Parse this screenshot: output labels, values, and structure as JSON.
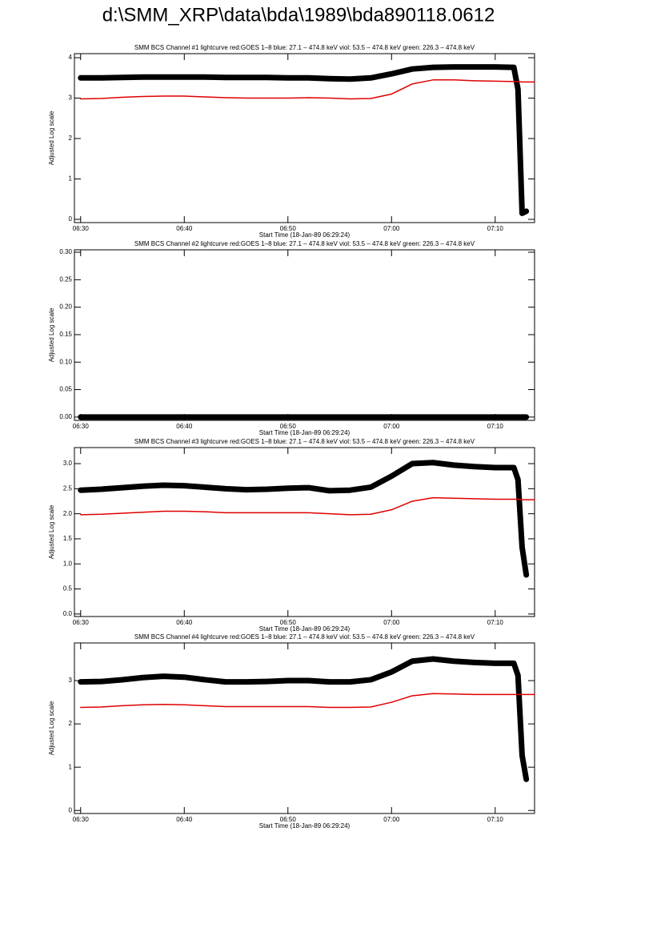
{
  "title": "d:\\SMM_XRP\\data\\bda\\1989\\bda890118.0612",
  "chart_data": [
    {
      "type": "line",
      "title": "SMM BCS Channel #1 lightcurve  red:GOES 1–8  blue: 27.1 – 474.8 keV  viol: 53.5 – 474.8 keV  green: 226.3 – 474.8 keV",
      "xlabel": "Start Time (18-Jan-89 06:29:24)",
      "ylabel": "Adjusted Log scale",
      "x": [
        390,
        392,
        394,
        396,
        398,
        400,
        402,
        404,
        406,
        408,
        410,
        412,
        414,
        416,
        418,
        420,
        422,
        424,
        426,
        428,
        430,
        431.8,
        432.2,
        432.6,
        433,
        433.8
      ],
      "xlim": [
        389.4,
        433.8
      ],
      "xticks": [
        {
          "value": 390,
          "label": "06:30"
        },
        {
          "value": 400,
          "label": "06:40"
        },
        {
          "value": 410,
          "label": "06:50"
        },
        {
          "value": 420,
          "label": "07:00"
        },
        {
          "value": 430,
          "label": "07:10"
        }
      ],
      "ylim": [
        -0.08,
        4.1
      ],
      "yticks": [
        0,
        1,
        2,
        3,
        4
      ],
      "series": [
        {
          "color": "#000000",
          "values": [
            3.5,
            3.5,
            3.51,
            3.52,
            3.52,
            3.52,
            3.52,
            3.51,
            3.51,
            3.51,
            3.5,
            3.5,
            3.48,
            3.47,
            3.5,
            3.6,
            3.72,
            3.76,
            3.77,
            3.77,
            3.77,
            3.76,
            3.22,
            0.15,
            0.2,
            null
          ]
        },
        {
          "color": "#e00000",
          "values": [
            2.98,
            2.99,
            3.02,
            3.04,
            3.05,
            3.05,
            3.03,
            3.01,
            3.0,
            3.0,
            3.0,
            3.01,
            3.0,
            2.98,
            2.99,
            3.1,
            3.35,
            3.45,
            3.45,
            3.43,
            3.42,
            3.41,
            3.41,
            3.4,
            3.4,
            3.4
          ]
        }
      ]
    },
    {
      "type": "line",
      "title": "SMM BCS Channel #2 lightcurve  red:GOES 1–8  blue: 27.1 – 474.8 keV  viol: 53.5 – 474.8 keV  green: 226.3 – 474.8 keV",
      "xlabel": "Start Time (18-Jan-89 06:29:24)",
      "ylabel": "Adjusted Log scale",
      "x": [
        390,
        392,
        394,
        396,
        398,
        400,
        402,
        404,
        406,
        408,
        410,
        412,
        414,
        416,
        418,
        420,
        422,
        424,
        426,
        428,
        430,
        431.8,
        432.2,
        432.6,
        433,
        433.8
      ],
      "xlim": [
        389.4,
        433.8
      ],
      "xticks": [
        {
          "value": 390,
          "label": "06:30"
        },
        {
          "value": 400,
          "label": "06:40"
        },
        {
          "value": 410,
          "label": "06:50"
        },
        {
          "value": 420,
          "label": "07:00"
        },
        {
          "value": 430,
          "label": "07:10"
        }
      ],
      "ylim": [
        -0.006,
        0.3044
      ],
      "yticks": [
        {
          "value": 0,
          "label": "0.00"
        },
        {
          "value": 0.05,
          "label": "0.05"
        },
        {
          "value": 0.1,
          "label": "0.10"
        },
        {
          "value": 0.15,
          "label": "0.15"
        },
        {
          "value": 0.2,
          "label": "0.20"
        },
        {
          "value": 0.25,
          "label": "0.25"
        },
        {
          "value": 0.3,
          "label": "0.30"
        }
      ],
      "series": [
        {
          "color": "#000000",
          "values": [
            0,
            0,
            0,
            0,
            0,
            0,
            0,
            0,
            0,
            0,
            0,
            0,
            0,
            0,
            0,
            0,
            0,
            0,
            0,
            0,
            0,
            0,
            0,
            0,
            0,
            null
          ]
        }
      ]
    },
    {
      "type": "line",
      "title": "SMM BCS Channel #3 lightcurve  red:GOES 1–8  blue: 27.1 – 474.8 keV  viol: 53.5 – 474.8 keV  green: 226.3 – 474.8 keV",
      "xlabel": "Start Time (18-Jan-89 06:29:24)",
      "ylabel": "Adjusted Log scale",
      "x": [
        390,
        392,
        394,
        396,
        398,
        400,
        402,
        404,
        406,
        408,
        410,
        412,
        414,
        416,
        418,
        420,
        422,
        424,
        426,
        428,
        430,
        431.8,
        432.2,
        432.6,
        433,
        433.8
      ],
      "xlim": [
        389.4,
        433.8
      ],
      "xticks": [
        {
          "value": 390,
          "label": "06:30"
        },
        {
          "value": 400,
          "label": "06:40"
        },
        {
          "value": 410,
          "label": "06:50"
        },
        {
          "value": 420,
          "label": "07:00"
        },
        {
          "value": 430,
          "label": "07:10"
        }
      ],
      "ylim": [
        -0.05,
        3.32
      ],
      "yticks": [
        {
          "value": 0,
          "label": "0.0"
        },
        0.5,
        {
          "value": 1,
          "label": "1.0"
        },
        1.5,
        {
          "value": 2,
          "label": "2.0"
        },
        2.5,
        {
          "value": 3,
          "label": "3.0"
        }
      ],
      "series": [
        {
          "color": "#000000",
          "values": [
            2.47,
            2.49,
            2.52,
            2.55,
            2.57,
            2.56,
            2.53,
            2.5,
            2.48,
            2.49,
            2.51,
            2.52,
            2.46,
            2.47,
            2.53,
            2.75,
            3.0,
            3.02,
            2.97,
            2.94,
            2.92,
            2.92,
            2.68,
            1.33,
            0.78,
            null
          ]
        },
        {
          "color": "#e00000",
          "values": [
            1.98,
            1.99,
            2.01,
            2.03,
            2.05,
            2.05,
            2.04,
            2.02,
            2.02,
            2.02,
            2.02,
            2.02,
            2.0,
            1.98,
            1.99,
            2.08,
            2.25,
            2.32,
            2.31,
            2.3,
            2.29,
            2.29,
            2.29,
            2.28,
            2.28,
            2.28
          ]
        }
      ]
    },
    {
      "type": "line",
      "title": "SMM BCS Channel #4 lightcurve  red:GOES 1–8  blue: 27.1 – 474.8 keV  viol: 53.5 – 474.8 keV  green: 226.3 – 474.8 keV",
      "xlabel": "Start Time (18-Jan-89 06:29:24)",
      "ylabel": "Adjusted Log scale",
      "x": [
        390,
        392,
        394,
        396,
        398,
        400,
        402,
        404,
        406,
        408,
        410,
        412,
        414,
        416,
        418,
        420,
        422,
        424,
        426,
        428,
        430,
        431.8,
        432.2,
        432.6,
        433,
        433.8
      ],
      "xlim": [
        389.4,
        433.8
      ],
      "xticks": [
        {
          "value": 390,
          "label": "06:30"
        },
        {
          "value": 400,
          "label": "06:40"
        },
        {
          "value": 410,
          "label": "06:50"
        },
        {
          "value": 420,
          "label": "07:00"
        },
        {
          "value": 430,
          "label": "07:10"
        }
      ],
      "ylim": [
        -0.07,
        3.87
      ],
      "yticks": [
        0,
        1,
        2,
        3
      ],
      "series": [
        {
          "color": "#000000",
          "values": [
            2.97,
            2.98,
            3.02,
            3.07,
            3.1,
            3.08,
            3.02,
            2.97,
            2.97,
            2.98,
            3.0,
            3.0,
            2.97,
            2.97,
            3.02,
            3.2,
            3.45,
            3.5,
            3.45,
            3.42,
            3.4,
            3.4,
            3.12,
            1.27,
            0.72,
            null
          ]
        },
        {
          "color": "#e00000",
          "values": [
            2.38,
            2.39,
            2.42,
            2.44,
            2.45,
            2.44,
            2.42,
            2.4,
            2.4,
            2.4,
            2.4,
            2.4,
            2.38,
            2.38,
            2.39,
            2.5,
            2.65,
            2.7,
            2.69,
            2.68,
            2.68,
            2.68,
            2.68,
            2.68,
            2.68,
            2.68
          ]
        }
      ]
    }
  ]
}
